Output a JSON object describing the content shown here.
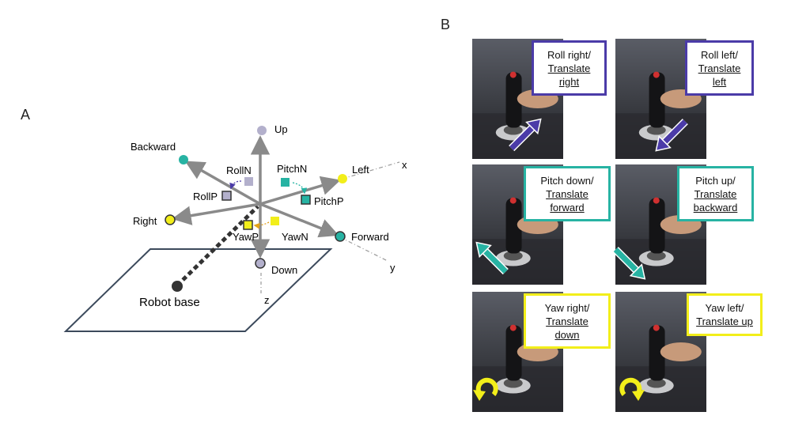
{
  "panel_a": {
    "letter": "A",
    "labels": {
      "up": "Up",
      "down": "Down",
      "left": "Left",
      "right": "Right",
      "forward": "Forward",
      "backward": "Backward",
      "rolln": "RollN",
      "rollp": "RollP",
      "pitchn": "PitchN",
      "pitchp": "PitchP",
      "yawp": "YawP",
      "yawn": "YawN",
      "x": "x",
      "y": "y",
      "z": "z",
      "base": "Robot base"
    },
    "colors": {
      "axis": "#8a8a8a",
      "up": "#b3b0cc",
      "down": "#b3b0cc",
      "left": "#f2ee1a",
      "right": "#f2ee1a",
      "forward": "#27b3a3",
      "backward": "#27b3a3",
      "roll": "#b3b0cc",
      "roll_arrow": "#4b3ba8",
      "pitch": "#27b3a3",
      "yaw": "#f2ee1a",
      "yaw_arrow": "#e3a21a",
      "base_outline": "#3c4a5c",
      "base_dot": "#333333"
    }
  },
  "panel_b": {
    "letter": "B",
    "tiles": [
      {
        "l1": "Roll right/",
        "l2": "Translate",
        "l3": "right",
        "color": "#4b3ba8",
        "arrow": "up-right"
      },
      {
        "l1": "Roll left/",
        "l2": "Translate",
        "l3": "left",
        "color": "#4b3ba8",
        "arrow": "down-left"
      },
      {
        "l1": "Pitch down/",
        "l2": "Translate",
        "l3": "forward",
        "color": "#27b3a3",
        "arrow": "up-left"
      },
      {
        "l1": "Pitch up/",
        "l2": "Translate",
        "l3": "backward",
        "color": "#27b3a3",
        "arrow": "down-right"
      },
      {
        "l1": "Yaw right/",
        "l2": "Translate",
        "l3": "down",
        "color": "#f2ee1a",
        "arrow": "clockwise"
      },
      {
        "l1": "Yaw left/",
        "l2": "Translate up",
        "l3": "",
        "color": "#f2ee1a",
        "arrow": "counter-clockwise"
      }
    ]
  }
}
